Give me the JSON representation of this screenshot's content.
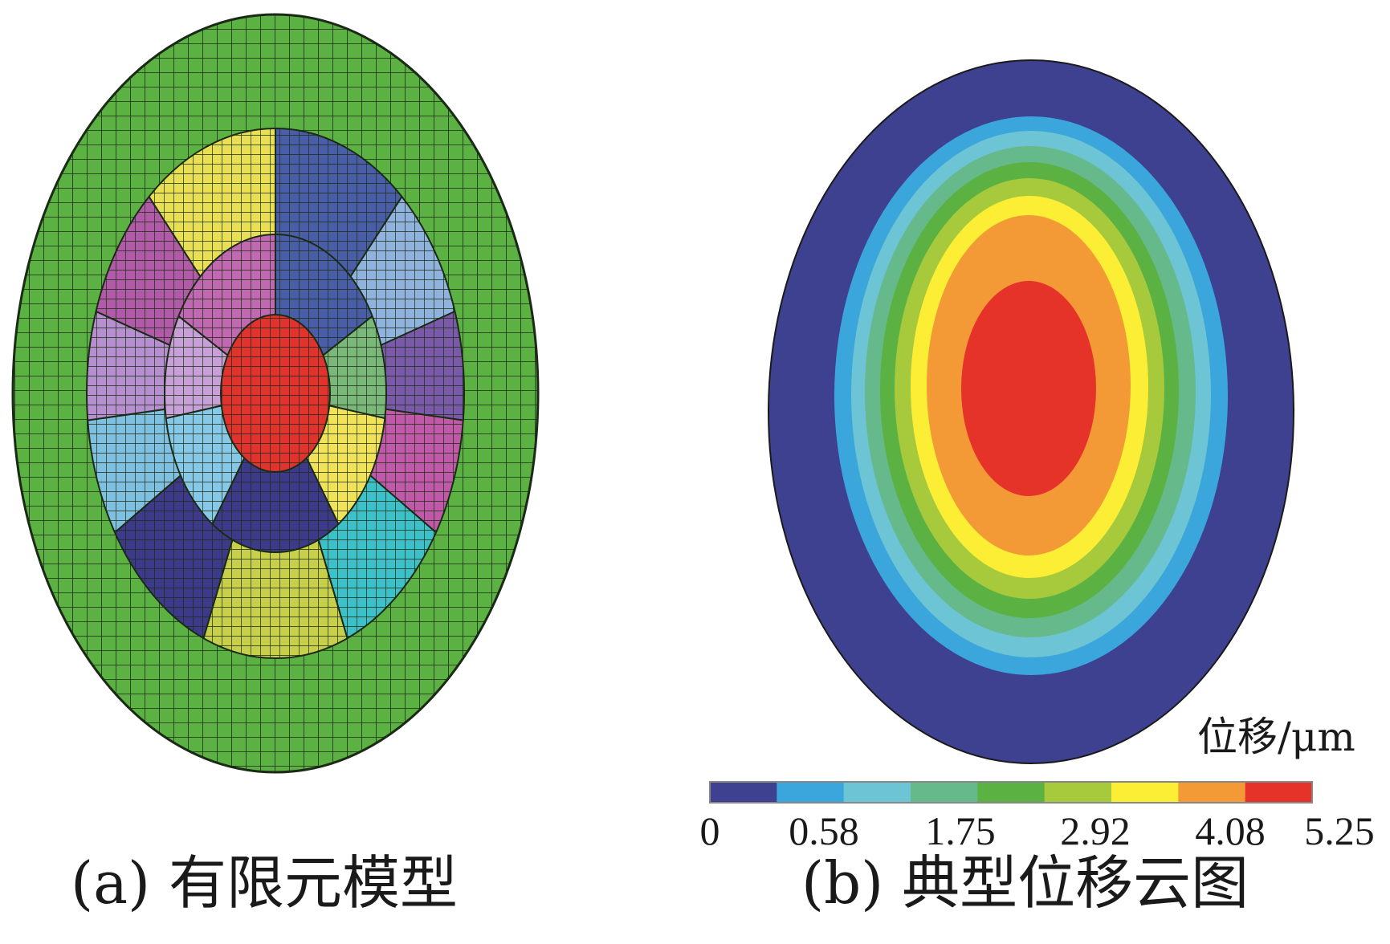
{
  "panel_a": {
    "caption": "(a) 有限元模型",
    "colors": {
      "outer_ring": "#5bb142",
      "core": "#e0332e",
      "mesh_line": "#1b2a16",
      "sectors_outer": [
        "#4a5ea8",
        "#8fb3dd",
        "#7a5aa8",
        "#c05aa8",
        "#3ec0c8",
        "#c8cf4a",
        "#3d3a8a",
        "#7fc0e0",
        "#b58fce",
        "#b05aa8",
        "#e8df55"
      ],
      "sectors_inner": [
        "#4a5ea8",
        "#7ab87a",
        "#f0e35a",
        "#3d3a8a",
        "#86c8e6",
        "#c8a0d8",
        "#c068b0"
      ]
    }
  },
  "panel_b": {
    "caption": "(b) 典型位移云图",
    "unit": "位移/μm",
    "colorbar": {
      "band_colors": [
        "#3e4090",
        "#3aa6dc",
        "#6cc4d4",
        "#66b98a",
        "#5bb142",
        "#a6ca3c",
        "#fbee34",
        "#f39a36",
        "#e5332a"
      ],
      "tick_labels": [
        "0",
        "0.58",
        "1.75",
        "2.92",
        "4.08",
        "5.25"
      ]
    }
  }
}
